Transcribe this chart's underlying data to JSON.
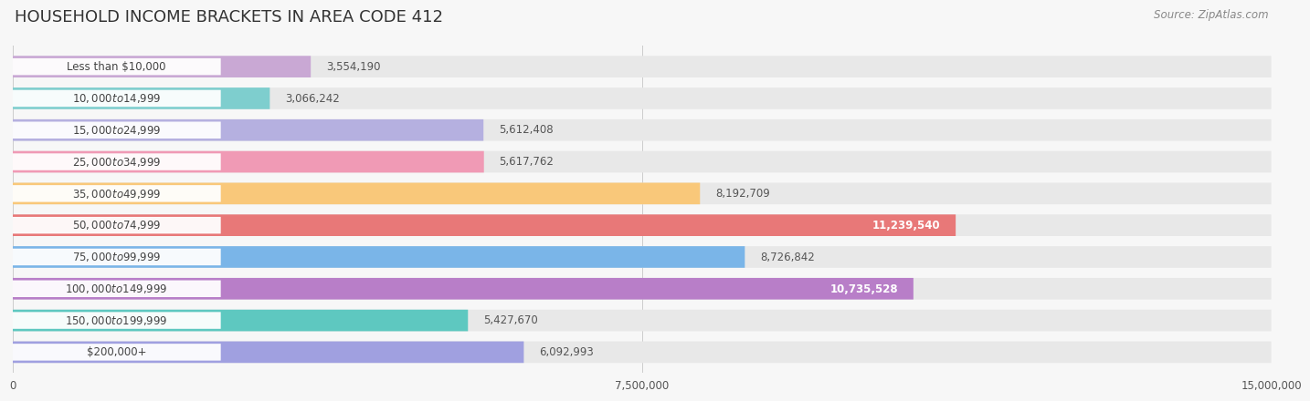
{
  "title": "HOUSEHOLD INCOME BRACKETS IN AREA CODE 412",
  "source": "Source: ZipAtlas.com",
  "categories": [
    "Less than $10,000",
    "$10,000 to $14,999",
    "$15,000 to $24,999",
    "$25,000 to $34,999",
    "$35,000 to $49,999",
    "$50,000 to $74,999",
    "$75,000 to $99,999",
    "$100,000 to $149,999",
    "$150,000 to $199,999",
    "$200,000+"
  ],
  "values": [
    3554190,
    3066242,
    5612408,
    5617762,
    8192709,
    11239540,
    8726842,
    10735528,
    5427670,
    6092993
  ],
  "bar_colors": [
    "#c9a8d4",
    "#7ecece",
    "#b5b0e0",
    "#f09ab5",
    "#f9c87a",
    "#e87878",
    "#7ab5e8",
    "#b87ec8",
    "#5ec8c0",
    "#a0a0e0"
  ],
  "value_inside": [
    false,
    false,
    false,
    false,
    false,
    true,
    false,
    true,
    false,
    false
  ],
  "value_labels": [
    "3,554,190",
    "3,066,242",
    "5,612,408",
    "5,617,762",
    "8,192,709",
    "11,239,540",
    "8,726,842",
    "10,735,528",
    "5,427,670",
    "6,092,993"
  ],
  "xlim": [
    0,
    15000000
  ],
  "xticks": [
    0,
    7500000,
    15000000
  ],
  "xtick_labels": [
    "0",
    "7,500,000",
    "15,000,000"
  ],
  "background_color": "#f7f7f7",
  "bar_bg_color": "#e8e8e8",
  "title_fontsize": 13,
  "label_fontsize": 8.5,
  "value_fontsize": 8.5,
  "source_fontsize": 8.5
}
